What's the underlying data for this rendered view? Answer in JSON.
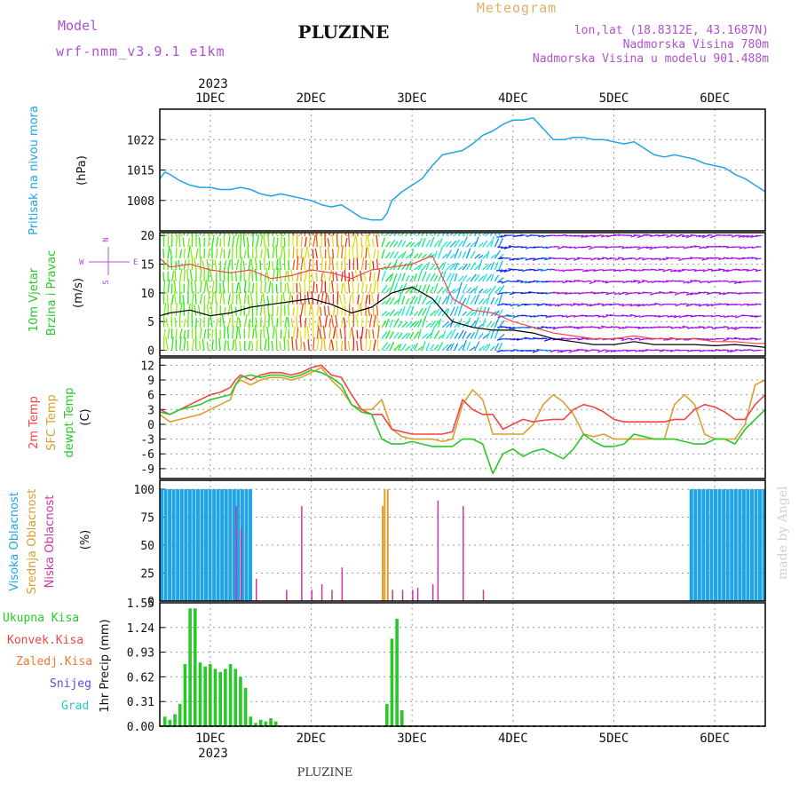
{
  "header": {
    "model_label": "Model",
    "model_name": "wrf-nmm_v3.9.1 e1km",
    "station": "PLUZINE",
    "meteogram_label": "Meteogram",
    "coords": "lon,lat (18.8312E, 43.1687N)",
    "elevation": "Nadmorska Visina 780m",
    "model_elevation": "Nadmorska Visina u modelu 901.488m",
    "credit": "made by Angel",
    "footer": "PLUZINE",
    "year": "2023"
  },
  "colors": {
    "pressure": "#1fa4e6",
    "temp2m": "#f04646",
    "sfc_temp": "#d8a030",
    "dewpt": "#28c828",
    "cloud_high": "#1fa4e6",
    "cloud_mid": "#d8a030",
    "cloud_low": "#c838a8",
    "precip_total": "#28c828",
    "precip_conv": "#f04646",
    "precip_frz": "#f07830",
    "precip_snow": "#5050e6",
    "precip_grad": "#28c8c8",
    "title_purple": "#b050d0"
  },
  "chart_data": [
    {
      "id": "pressure",
      "type": "line",
      "title": "Pritisak na nivou mora",
      "ylabel": "(hPa)",
      "ylim": [
        1001,
        1029
      ],
      "yticks": [
        1008,
        1015,
        1022
      ],
      "x_unit": "days since 1DEC 00UTC",
      "xlim": [
        -0.5,
        5.5
      ],
      "x_ticks": [
        "1DEC",
        "2DEC",
        "3DEC",
        "4DEC",
        "5DEC",
        "6DEC"
      ],
      "x": [
        -0.5,
        -0.45,
        -0.4,
        -0.3,
        -0.2,
        -0.1,
        0,
        0.1,
        0.2,
        0.3,
        0.4,
        0.5,
        0.6,
        0.7,
        0.8,
        0.9,
        1.0,
        1.1,
        1.2,
        1.3,
        1.4,
        1.5,
        1.6,
        1.7,
        1.75,
        1.8,
        1.9,
        2.0,
        2.1,
        2.2,
        2.3,
        2.4,
        2.5,
        2.6,
        2.7,
        2.8,
        2.9,
        3.0,
        3.1,
        3.2,
        3.3,
        3.4,
        3.5,
        3.6,
        3.7,
        3.8,
        3.9,
        4.0,
        4.1,
        4.2,
        4.3,
        4.4,
        4.5,
        4.6,
        4.7,
        4.8,
        4.9,
        5.0,
        5.1,
        5.2,
        5.3,
        5.4,
        5.5
      ],
      "y": [
        1013,
        1014.5,
        1014,
        1012.5,
        1011.5,
        1011,
        1011,
        1010.5,
        1010.5,
        1011,
        1010.5,
        1009.5,
        1009,
        1009.5,
        1009,
        1008.5,
        1008,
        1007,
        1006.5,
        1007,
        1005.5,
        1004,
        1003.5,
        1003.5,
        1005,
        1008,
        1010,
        1011.5,
        1013,
        1016,
        1018.5,
        1019,
        1019.5,
        1021,
        1023,
        1024,
        1025.5,
        1026.5,
        1026.5,
        1027,
        1024.5,
        1022,
        1022,
        1022.5,
        1022.5,
        1022,
        1022,
        1021.5,
        1021,
        1021.5,
        1020,
        1018.5,
        1018,
        1018.5,
        1018,
        1017.5,
        1016.5,
        1016,
        1015.5,
        1014,
        1013,
        1011.5,
        1010
      ]
    },
    {
      "id": "wind",
      "type": "line",
      "title": "10m Vjetar",
      "subtitle": "Brzina i Pravac",
      "ylabel": "(m/s)",
      "compass": [
        "N",
        "S",
        "W",
        "E"
      ],
      "ylim": [
        -1,
        20.5
      ],
      "yticks": [
        0,
        5,
        10,
        15,
        20
      ],
      "x": [
        -0.5,
        -0.4,
        -0.2,
        0,
        0.2,
        0.4,
        0.6,
        0.8,
        1.0,
        1.2,
        1.4,
        1.6,
        1.8,
        2.0,
        2.2,
        2.4,
        2.6,
        2.8,
        3.0,
        3.2,
        3.4,
        3.6,
        3.8,
        4.0,
        4.2,
        4.4,
        4.6,
        4.8,
        5.0,
        5.2,
        5.4,
        5.5
      ],
      "speed": [
        6,
        6.5,
        7,
        6,
        6.5,
        7.5,
        8,
        8.5,
        9,
        8,
        6.5,
        7.5,
        10,
        11,
        9,
        5,
        4,
        3.5,
        3.5,
        3,
        2,
        1.5,
        1,
        1,
        1.5,
        1,
        1,
        1,
        0.8,
        1,
        0.7,
        0.5
      ],
      "gust": [
        16,
        14.5,
        15,
        14,
        13.5,
        14,
        12.5,
        13,
        14,
        13.5,
        12.5,
        14,
        14.5,
        15,
        16.5,
        9,
        7,
        6.5,
        5,
        4,
        3,
        2.5,
        2,
        2,
        2.5,
        2,
        2,
        2,
        1.5,
        1.5,
        1.2,
        1.2
      ]
    },
    {
      "id": "temperature",
      "type": "line",
      "ylabel": "(C)",
      "series_labels": [
        "2m Temp",
        "SFC Temp",
        "dewpt Temp"
      ],
      "ylim": [
        -11,
        13.5
      ],
      "yticks": [
        12,
        9,
        6,
        3,
        0,
        -3,
        -6,
        -9
      ],
      "x": [
        -0.5,
        -0.4,
        -0.3,
        -0.2,
        -0.1,
        0,
        0.1,
        0.2,
        0.25,
        0.3,
        0.4,
        0.5,
        0.6,
        0.7,
        0.8,
        0.9,
        1.0,
        1.1,
        1.2,
        1.3,
        1.4,
        1.5,
        1.6,
        1.7,
        1.8,
        1.9,
        2.0,
        2.1,
        2.2,
        2.3,
        2.4,
        2.5,
        2.6,
        2.7,
        2.8,
        2.9,
        3.0,
        3.1,
        3.2,
        3.3,
        3.4,
        3.5,
        3.6,
        3.7,
        3.8,
        3.9,
        4.0,
        4.1,
        4.2,
        4.3,
        4.4,
        4.5,
        4.6,
        4.7,
        4.8,
        4.9,
        5.0,
        5.1,
        5.2,
        5.3,
        5.4,
        5.5
      ],
      "series": [
        {
          "name": "2m Temp",
          "y": [
            3,
            2,
            3,
            4,
            5,
            6,
            6.5,
            7.5,
            9,
            10,
            9,
            10,
            10.5,
            10.5,
            10,
            10.5,
            11.5,
            12,
            10,
            9.5,
            6,
            3,
            2,
            2,
            -1,
            -1.5,
            -2,
            -2,
            -2,
            -2,
            -1.5,
            5,
            3,
            2,
            2,
            -1,
            0,
            1,
            0.5,
            0.8,
            1,
            1,
            3,
            4,
            3.5,
            2.5,
            1,
            0.5,
            0.5,
            0.5,
            0.5,
            0.5,
            1,
            1,
            3,
            4,
            3.5,
            2.5,
            1,
            1,
            4,
            6
          ]
        },
        {
          "name": "SFC Temp",
          "y": [
            2,
            0.5,
            1,
            1.5,
            2,
            3,
            4,
            5,
            8,
            9,
            8,
            9,
            9.5,
            9.5,
            9,
            9.5,
            10.5,
            11.5,
            9,
            7,
            4,
            3,
            3,
            5,
            -1,
            -2.5,
            -3,
            -3,
            -3,
            -3.5,
            -3,
            4,
            7,
            5,
            -2,
            -2,
            -2,
            -2,
            0,
            4,
            6,
            4.5,
            2,
            -2,
            -2.5,
            -2,
            -3,
            -3,
            -3,
            -3,
            -3,
            -3,
            4,
            6,
            4,
            -2,
            -3,
            -3,
            -3,
            0,
            8,
            9
          ]
        },
        {
          "name": "dewpt Temp",
          "y": [
            2.5,
            2,
            3,
            3.5,
            4,
            5,
            5.5,
            6,
            8,
            9.5,
            10,
            9.5,
            10,
            10,
            9.5,
            10,
            11,
            10.5,
            9.5,
            8,
            4,
            2.5,
            2,
            -3,
            -4,
            -4,
            -3.5,
            -4,
            -4.5,
            -4.5,
            -4.5,
            -3,
            -3,
            -4,
            -10,
            -6,
            -5,
            -6.5,
            -5.5,
            -5,
            -6,
            -7,
            -5,
            -2,
            -3.5,
            -4.5,
            -4.5,
            -4,
            -2,
            -2.5,
            -3,
            -3,
            -3,
            -3.5,
            -4,
            -4,
            -3,
            -3,
            -4,
            -1,
            1,
            3
          ]
        }
      ]
    },
    {
      "id": "clouds",
      "type": "bar",
      "ylabel": "(%)",
      "series_labels": [
        "Visoka Oblacnost",
        "Srednja Oblacnost",
        "Niska Oblacnost"
      ],
      "ylim": [
        0,
        108
      ],
      "yticks": [
        0,
        25,
        50,
        75,
        100
      ],
      "high_full_ranges": [
        [
          -0.5,
          0.4
        ],
        [
          4.75,
          5.5
        ]
      ],
      "high_gap_step": 0.04,
      "mid": [
        [
          1.7,
          85
        ],
        [
          1.72,
          100
        ],
        [
          1.75,
          100
        ]
      ],
      "low": [
        [
          0.25,
          85
        ],
        [
          0.3,
          65
        ],
        [
          0.45,
          20
        ],
        [
          0.75,
          10
        ],
        [
          0.9,
          85
        ],
        [
          1.0,
          10
        ],
        [
          1.1,
          15
        ],
        [
          1.2,
          10
        ],
        [
          1.3,
          30
        ],
        [
          1.8,
          10
        ],
        [
          1.9,
          10
        ],
        [
          2.0,
          10
        ],
        [
          2.05,
          12
        ],
        [
          2.2,
          15
        ],
        [
          2.25,
          90
        ],
        [
          2.5,
          85
        ],
        [
          2.7,
          10
        ]
      ]
    },
    {
      "id": "precip",
      "type": "bar",
      "ylabel": "1hr Precip (mm)",
      "series_labels": [
        "Ukupna Kisa",
        "Konvek.Kisa",
        "Zaledj.Kisa",
        "Snijeg",
        "Grad"
      ],
      "ylim": [
        0,
        1.55
      ],
      "yticks": [
        0,
        0.31,
        0.62,
        0.93,
        1.24,
        1.55
      ],
      "x": [
        -0.45,
        -0.4,
        -0.35,
        -0.3,
        -0.25,
        -0.2,
        -0.15,
        -0.1,
        -0.05,
        0,
        0.05,
        0.1,
        0.15,
        0.2,
        0.25,
        0.3,
        0.35,
        0.4,
        0.45,
        0.5,
        0.55,
        0.6,
        0.65,
        1.75,
        1.8,
        1.85,
        1.9
      ],
      "values": [
        0.12,
        0.08,
        0.15,
        0.28,
        0.78,
        1.48,
        1.48,
        0.8,
        0.75,
        0.78,
        0.72,
        0.68,
        0.72,
        0.78,
        0.72,
        0.62,
        0.48,
        0.12,
        0.04,
        0.08,
        0.06,
        0.1,
        0.06,
        0.28,
        1.1,
        1.35,
        0.2
      ]
    }
  ]
}
